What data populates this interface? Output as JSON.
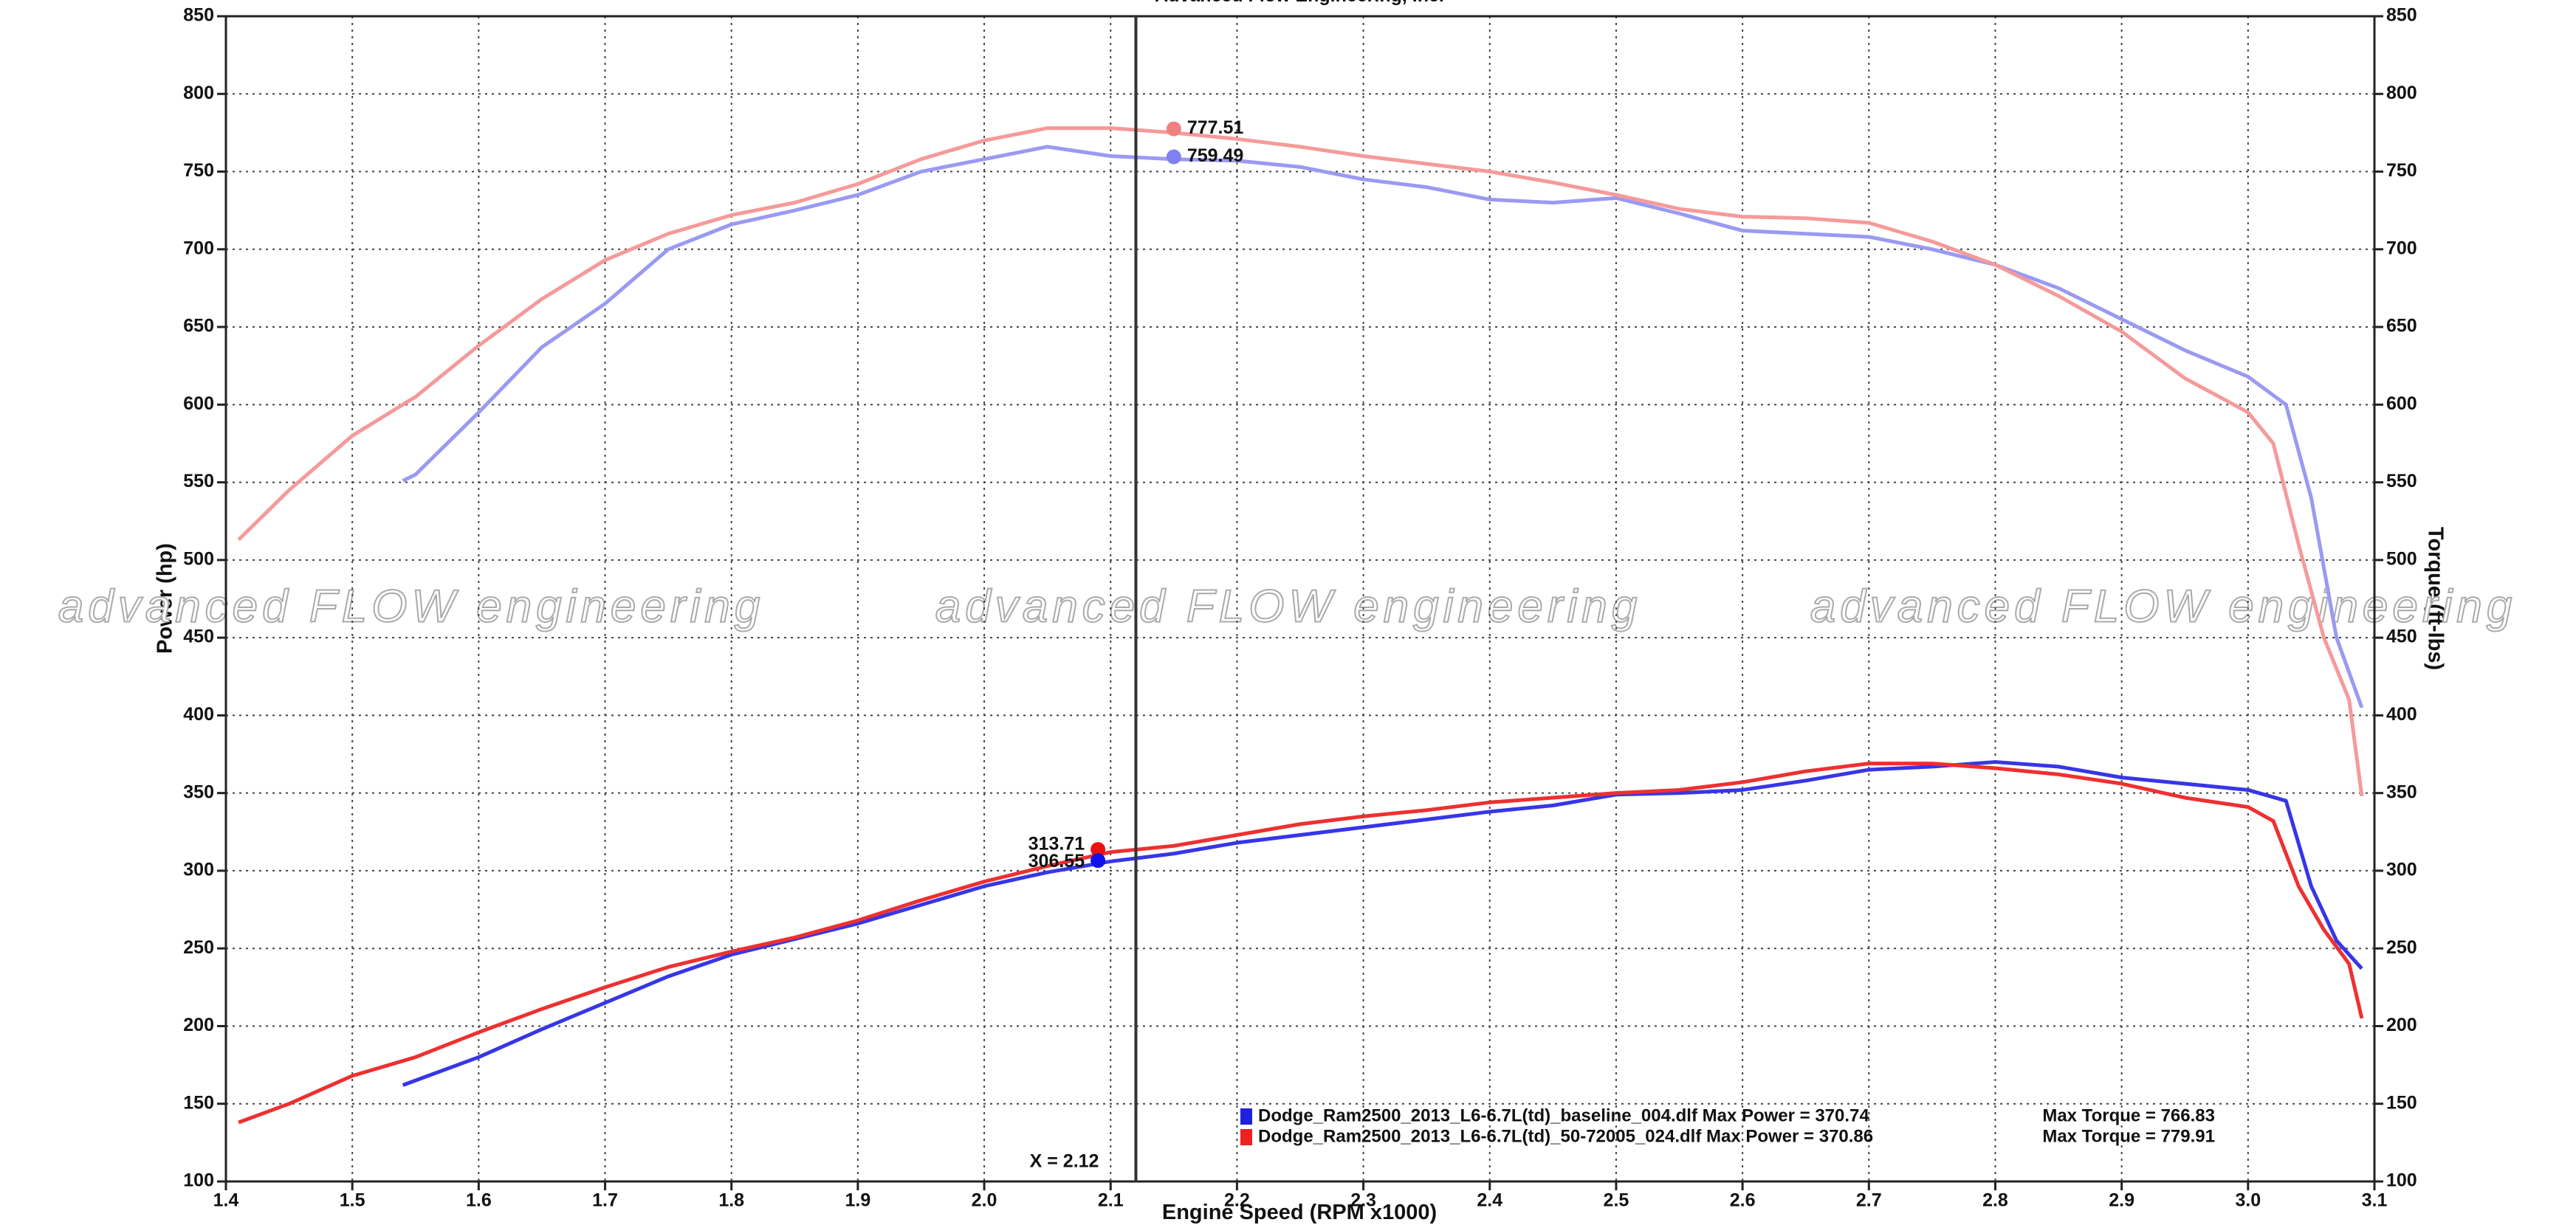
{
  "chart_data": {
    "type": "line",
    "title": "Advanced Flow Engineering, Inc.",
    "x_label": "Engine Speed (RPM x1000)",
    "y_label": "Power (hp)",
    "y2_label": "Torque (ft-lbs)",
    "watermark": "advanced FLOW engineering",
    "xlim": [
      1.4,
      3.1
    ],
    "xticks": [
      1.4,
      1.5,
      1.6,
      1.7,
      1.8,
      1.9,
      {
        "value": 2,
        "label": "2.0"
      },
      2.1,
      2.2,
      2.3,
      2.4,
      2.5,
      2.6,
      2.7,
      2.8,
      2.9,
      {
        "value": 3,
        "label": "3.0"
      },
      3.1
    ],
    "ylim": [
      100,
      850
    ],
    "yticks": [
      100,
      150,
      200,
      250,
      300,
      350,
      400,
      450,
      500,
      550,
      600,
      650,
      700,
      750,
      800,
      850
    ],
    "y2lim": [
      100,
      850
    ],
    "y2ticks": [
      100,
      150,
      200,
      250,
      300,
      350,
      400,
      450,
      500,
      550,
      600,
      650,
      700,
      750,
      800,
      850
    ],
    "grid": true,
    "series": [
      {
        "color": "#3636e6",
        "axis": "y",
        "x": [
          1.54,
          1.55,
          1.6,
          1.65,
          1.7,
          1.75,
          1.8,
          1.85,
          1.9,
          1.95,
          2.0,
          2.05,
          2.1,
          2.15,
          2.2,
          2.25,
          2.3,
          2.35,
          2.4,
          2.45,
          2.5,
          2.55,
          2.6,
          2.65,
          2.7,
          2.75,
          2.8,
          2.85,
          2.9,
          2.95,
          3.0,
          3.03,
          3.05,
          3.07,
          3.09
        ],
        "values": [
          162,
          165,
          180,
          198,
          215,
          232,
          246,
          256,
          266,
          278,
          290,
          299,
          306,
          311,
          318,
          323,
          328,
          333,
          338,
          342,
          349,
          350,
          352,
          358,
          365,
          367,
          370,
          367,
          360,
          356,
          352,
          345,
          290,
          255,
          237
        ]
      },
      {
        "color": "#ee3030",
        "axis": "y",
        "x": [
          1.41,
          1.45,
          1.5,
          1.55,
          1.6,
          1.65,
          1.7,
          1.75,
          1.8,
          1.85,
          1.9,
          1.95,
          2.0,
          2.05,
          2.1,
          2.15,
          2.2,
          2.25,
          2.3,
          2.35,
          2.4,
          2.45,
          2.5,
          2.55,
          2.6,
          2.65,
          2.7,
          2.75,
          2.8,
          2.85,
          2.9,
          2.95,
          3.0,
          3.02,
          3.04,
          3.06,
          3.08,
          3.09
        ],
        "values": [
          138,
          150,
          168,
          180,
          196,
          211,
          225,
          238,
          248,
          257,
          268,
          281,
          293,
          303,
          312,
          316,
          323,
          330,
          335,
          339,
          344,
          347,
          350,
          352,
          357,
          364,
          369,
          369,
          366,
          362,
          356,
          347,
          341,
          332,
          290,
          262,
          240,
          205
        ]
      },
      {
        "color": "#9a9af3",
        "axis": "y2",
        "x": [
          1.54,
          1.55,
          1.6,
          1.65,
          1.7,
          1.75,
          1.8,
          1.85,
          1.9,
          1.95,
          2.0,
          2.05,
          2.1,
          2.15,
          2.2,
          2.25,
          2.3,
          2.35,
          2.4,
          2.45,
          2.5,
          2.55,
          2.6,
          2.65,
          2.7,
          2.75,
          2.8,
          2.85,
          2.9,
          2.95,
          3.0,
          3.03,
          3.05,
          3.07,
          3.09
        ],
        "values": [
          551,
          555,
          595,
          637,
          665,
          700,
          716,
          725,
          735,
          750,
          758,
          766,
          760,
          758,
          757,
          753,
          745,
          740,
          732,
          730,
          733,
          723,
          712,
          710,
          708,
          700,
          690,
          675,
          655,
          635,
          618,
          600,
          540,
          450,
          405
        ]
      },
      {
        "color": "#f59a9a",
        "axis": "y2",
        "x": [
          1.41,
          1.45,
          1.5,
          1.55,
          1.6,
          1.65,
          1.7,
          1.75,
          1.8,
          1.85,
          1.9,
          1.95,
          2.0,
          2.05,
          2.1,
          2.15,
          2.2,
          2.25,
          2.3,
          2.35,
          2.4,
          2.45,
          2.5,
          2.55,
          2.6,
          2.65,
          2.7,
          2.75,
          2.8,
          2.85,
          2.9,
          2.95,
          3.0,
          3.02,
          3.04,
          3.06,
          3.08,
          3.09
        ],
        "values": [
          513,
          545,
          580,
          605,
          638,
          668,
          693,
          710,
          722,
          730,
          742,
          758,
          770,
          778,
          778,
          775,
          771,
          766,
          760,
          755,
          750,
          743,
          735,
          726,
          721,
          720,
          717,
          705,
          690,
          670,
          647,
          617,
          595,
          575,
          510,
          450,
          410,
          348
        ]
      }
    ],
    "cursor": {
      "x": 2.12,
      "label": "X = 2.12",
      "readouts": [
        {
          "x": 2.15,
          "value": 777.51,
          "color": "#f08080",
          "axis": "y2"
        },
        {
          "x": 2.15,
          "value": 759.49,
          "color": "#8080f0",
          "axis": "y2"
        },
        {
          "x": 2.09,
          "value": 313.71,
          "color": "#ee1010",
          "axis": "y"
        },
        {
          "x": 2.09,
          "value": 306.55,
          "color": "#1010ee",
          "axis": "y"
        }
      ]
    },
    "legend": [
      {
        "color": "#2020e0",
        "text": "Dodge_Ram2500_2013_L6-6.7L(td)_baseline_004.dlf Max Power = 370.74",
        "torque": "Max Torque = 766.83"
      },
      {
        "color": "#ee2020",
        "text": "Dodge_Ram2500_2013_L6-6.7L(td)_50-72005_024.dlf Max Power = 370.86",
        "torque": "Max Torque = 779.91"
      }
    ]
  }
}
